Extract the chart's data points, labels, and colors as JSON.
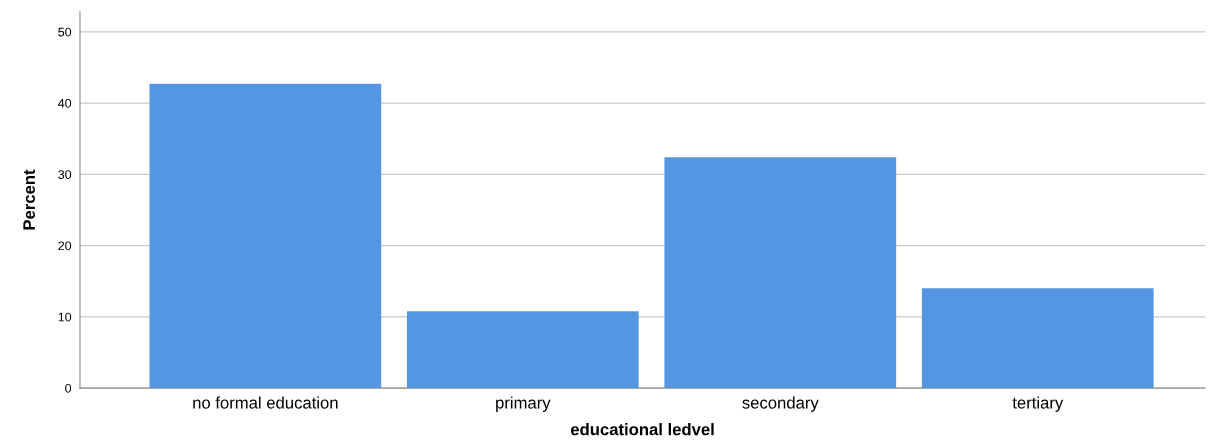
{
  "chart_data": {
    "type": "bar",
    "xlabel": "educational ledvel",
    "ylabel": "Percent",
    "categories": [
      "no formal education",
      "primary",
      "secondary",
      "tertiary"
    ],
    "values": [
      42.7,
      10.8,
      32.4,
      14.0
    ],
    "color": "#5596e3",
    "ylim": [
      0,
      52.8
    ],
    "yticks": [
      0,
      10,
      20,
      30,
      40,
      50
    ],
    "grid": "y",
    "legend": false
  }
}
